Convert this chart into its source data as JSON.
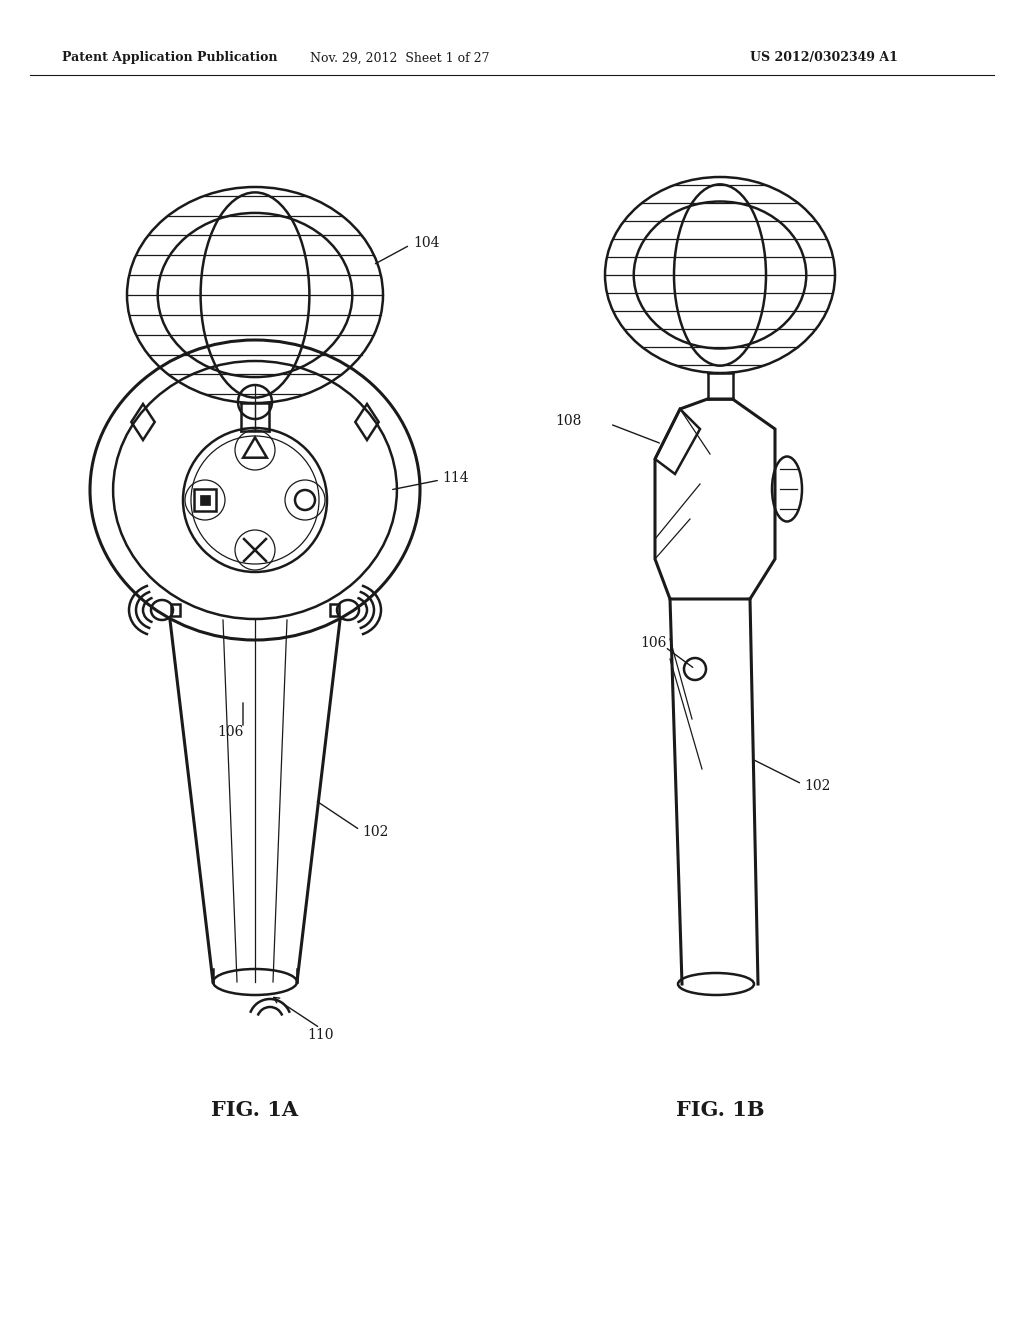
{
  "bg_color": "#ffffff",
  "line_color": "#1a1a1a",
  "header_left": "Patent Application Publication",
  "header_center": "Nov. 29, 2012  Sheet 1 of 27",
  "header_right": "US 2012/0302349 A1",
  "fig1a_label": "FIG. 1A",
  "fig1b_label": "FIG. 1B",
  "ref_104": "104",
  "ref_114": "114",
  "ref_106a": "106",
  "ref_106b": "106",
  "ref_102a": "102",
  "ref_102b": "102",
  "ref_110": "110",
  "ref_108": "108"
}
